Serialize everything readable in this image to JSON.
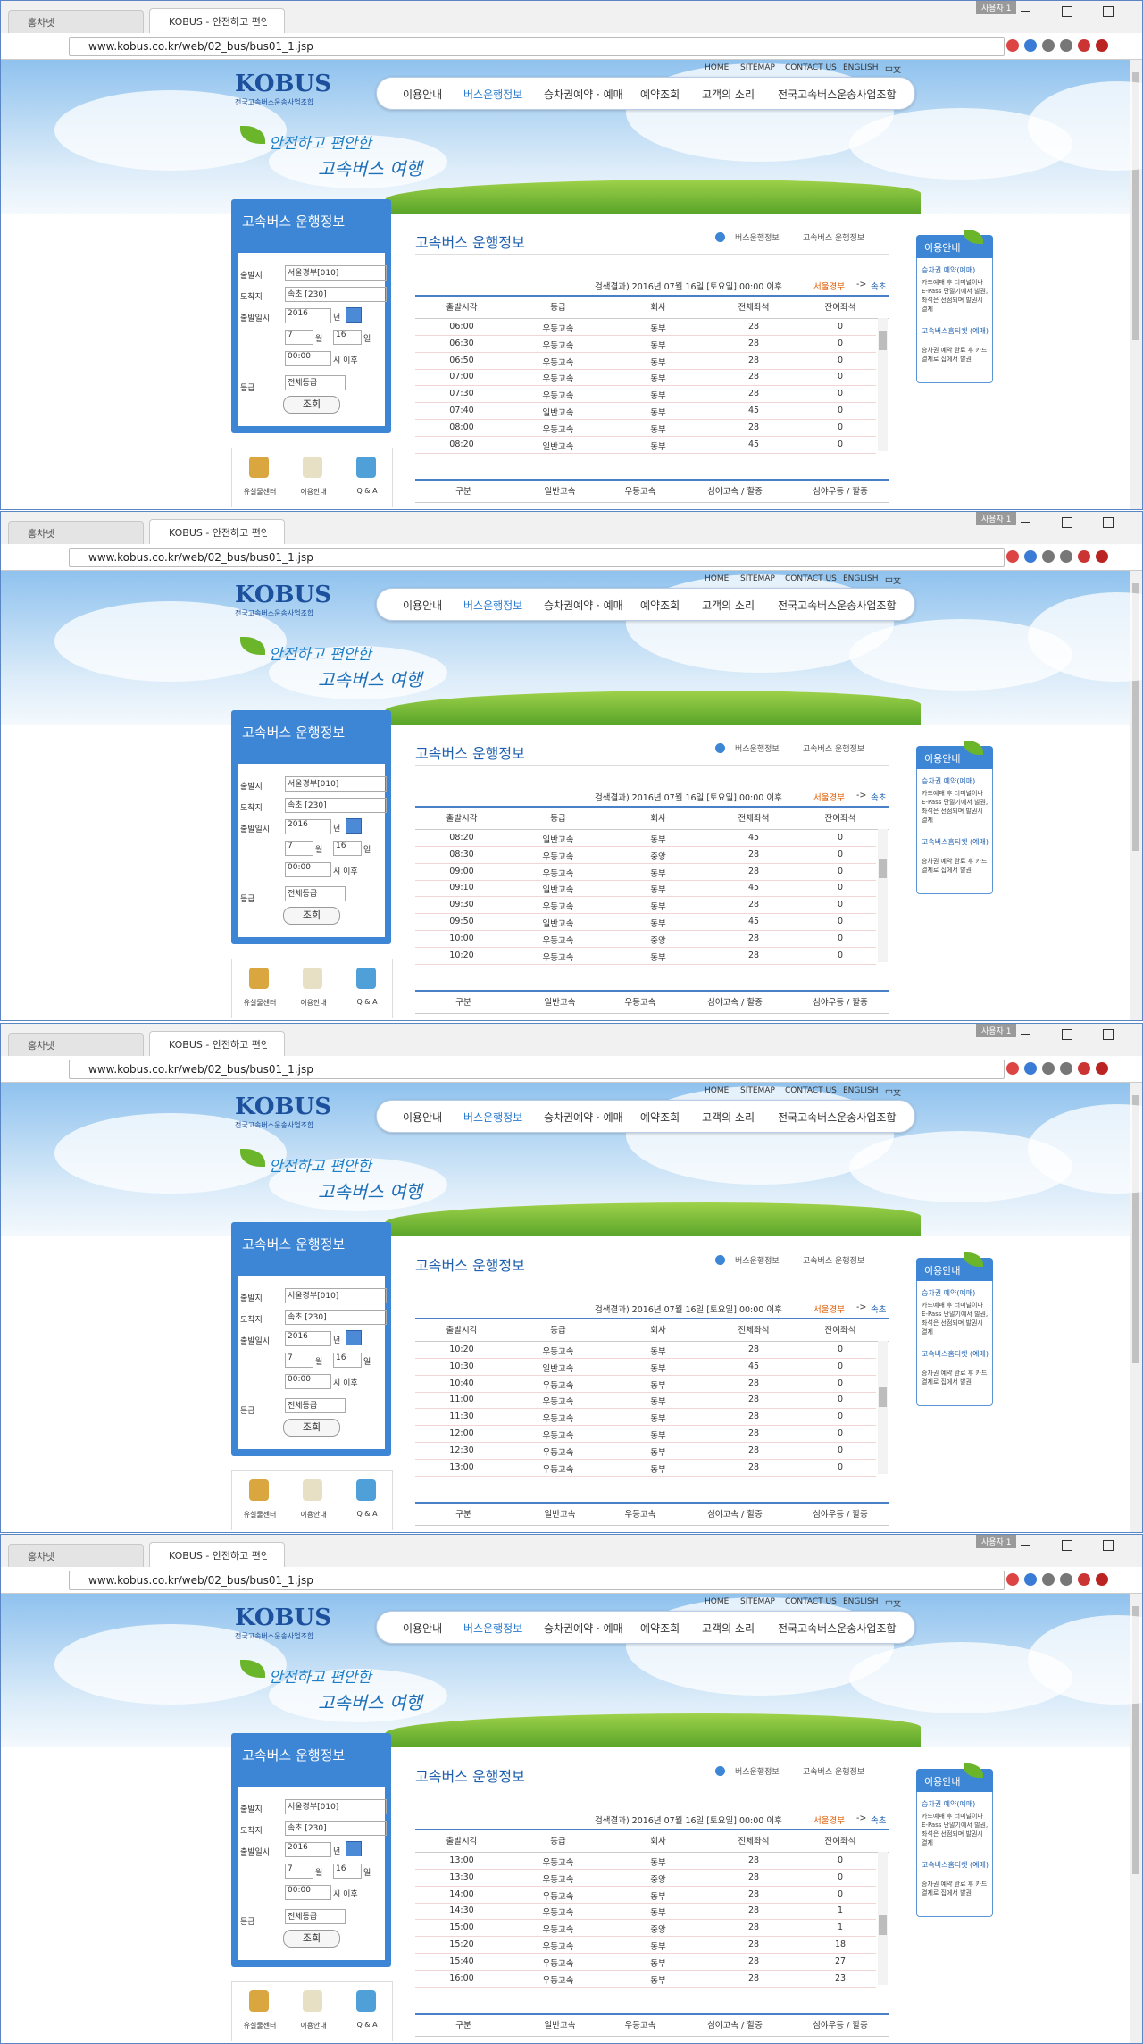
{
  "browser": {
    "tabs": [
      "홍차넷",
      "KOBUS - 안전하고 편안한"
    ],
    "user": "사용자 1",
    "url": "www.kobus.co.kr/web/02_bus/bus01_1.jsp"
  },
  "header": {
    "links": [
      "HOME",
      "SITEMAP",
      "CONTACT US",
      "ENGLISH",
      "中文"
    ],
    "logo": "KOBUS",
    "logo_sub": "전국고속버스운송사업조합",
    "nav": [
      "이용안내",
      "버스운행정보",
      "승차권예약 · 예매",
      "예약조회",
      "고객의 소리",
      "전국고속버스운송사업조합"
    ],
    "slogan_1": "안전하고 편안한",
    "slogan_2": "고속버스 여행"
  },
  "search_panel": {
    "title": "고속버스 운행정보",
    "fields": [
      {
        "label": "출발지",
        "value": "서울경부[010]"
      },
      {
        "label": "도착지",
        "value": "속초 [230]"
      }
    ],
    "date_label": "출발일시",
    "year": "2016",
    "year_unit": "년",
    "month": "7",
    "month_unit": "월",
    "day": "16",
    "day_unit": "일",
    "time": "00:00",
    "time_unit": "시 이후",
    "grade_label": "등급",
    "grade": "전체등급",
    "button": "조회"
  },
  "quick_links": [
    "유실물센터",
    "이용안내",
    "Q & A"
  ],
  "content": {
    "title": "고속버스 운행정보",
    "breadcrumb": [
      "버스운행정보",
      "고속버스 운행정보"
    ],
    "result": "검색결과) 2016년 07월 16일 [토요일] 00:00 이후",
    "route_from": "서울경부",
    "route_arrow": "->",
    "route_to": "속초",
    "columns": [
      "출발시각",
      "등급",
      "회사",
      "전체좌석",
      "잔여좌석"
    ],
    "fare_columns": [
      "구분",
      "일반고속",
      "우등고속",
      "심야고속 / 할증",
      "심야우등 / 할증"
    ]
  },
  "sidebar": {
    "title": "이용안내",
    "items": [
      {
        "title": "승차권 예약(예매)",
        "text": "카드예매 후 터미널이나 E-Pass 단말기에서 발권, 좌석은 선점되며 발권시 결제"
      },
      {
        "title": "고속버스홈티켓 (예매)",
        "text": "승차권 예약 완료 후 카드결제로 집에서 발권"
      }
    ]
  },
  "screens": [
    {
      "rows": [
        [
          "06:00",
          "우등고속",
          "동부",
          28,
          0
        ],
        [
          "06:30",
          "우등고속",
          "동부",
          28,
          0
        ],
        [
          "06:50",
          "우등고속",
          "동부",
          28,
          0
        ],
        [
          "07:00",
          "우등고속",
          "동부",
          28,
          0
        ],
        [
          "07:30",
          "우등고속",
          "동부",
          28,
          0
        ],
        [
          "07:40",
          "일반고속",
          "동부",
          45,
          0
        ],
        [
          "08:00",
          "우등고속",
          "동부",
          28,
          0
        ],
        [
          "08:20",
          "일반고속",
          "동부",
          45,
          0
        ]
      ]
    },
    {
      "rows": [
        [
          "08:20",
          "일반고속",
          "동부",
          45,
          0
        ],
        [
          "08:30",
          "우등고속",
          "중앙",
          28,
          0
        ],
        [
          "09:00",
          "우등고속",
          "동부",
          28,
          0
        ],
        [
          "09:10",
          "일반고속",
          "동부",
          45,
          0
        ],
        [
          "09:30",
          "우등고속",
          "동부",
          28,
          0
        ],
        [
          "09:50",
          "일반고속",
          "동부",
          45,
          0
        ],
        [
          "10:00",
          "우등고속",
          "중앙",
          28,
          0
        ],
        [
          "10:20",
          "우등고속",
          "동부",
          28,
          0
        ]
      ]
    },
    {
      "rows": [
        [
          "10:20",
          "우등고속",
          "동부",
          28,
          0
        ],
        [
          "10:30",
          "일반고속",
          "동부",
          45,
          0
        ],
        [
          "10:40",
          "우등고속",
          "동부",
          28,
          0
        ],
        [
          "11:00",
          "우등고속",
          "동부",
          28,
          0
        ],
        [
          "11:30",
          "우등고속",
          "동부",
          28,
          0
        ],
        [
          "12:00",
          "우등고속",
          "동부",
          28,
          0
        ],
        [
          "12:30",
          "우등고속",
          "동부",
          28,
          0
        ],
        [
          "13:00",
          "우등고속",
          "동부",
          28,
          0
        ]
      ]
    },
    {
      "rows": [
        [
          "13:00",
          "우등고속",
          "동부",
          28,
          0
        ],
        [
          "13:30",
          "우등고속",
          "중앙",
          28,
          0
        ],
        [
          "14:00",
          "우등고속",
          "동부",
          28,
          0
        ],
        [
          "14:30",
          "우등고속",
          "동부",
          28,
          1
        ],
        [
          "15:00",
          "우등고속",
          "중앙",
          28,
          1
        ],
        [
          "15:20",
          "우등고속",
          "동부",
          28,
          18
        ],
        [
          "15:40",
          "우등고속",
          "동부",
          28,
          27
        ],
        [
          "16:00",
          "우등고속",
          "동부",
          28,
          23
        ]
      ]
    }
  ]
}
